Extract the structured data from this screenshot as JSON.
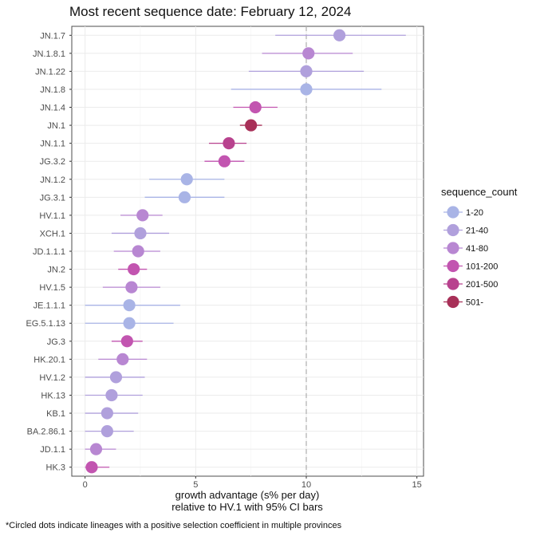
{
  "chart_data": {
    "type": "scatter",
    "subtype": "dot-with-confidence-interval",
    "title": "Most recent sequence date: February 12, 2024",
    "xlabel_line1": "growth advantage (s% per day)",
    "xlabel_line2": "relative to  HV.1  with 95% CI bars",
    "xlim": [
      -0.6,
      15.3
    ],
    "xticks": [
      0,
      5,
      10,
      15
    ],
    "reference_line_x": 10,
    "legend_title": "sequence_count",
    "legend": [
      {
        "label": "1-20",
        "color": "#a9b4e6"
      },
      {
        "label": "21-40",
        "color": "#b0a0dc"
      },
      {
        "label": "41-80",
        "color": "#b887d2"
      },
      {
        "label": "101-200",
        "color": "#c255b0"
      },
      {
        "label": "201-500",
        "color": "#b8428e"
      },
      {
        "label": "501-",
        "color": "#a83058"
      }
    ],
    "caption": "*Circled dots indicate lineages with a positive selection coefficient in multiple provinces",
    "lineages": [
      {
        "name": "JN.1.7",
        "value": 11.5,
        "lower": 8.6,
        "upper": 14.5,
        "group": "21-40"
      },
      {
        "name": "JN.1.8.1",
        "value": 10.1,
        "lower": 8.0,
        "upper": 12.1,
        "group": "41-80"
      },
      {
        "name": "JN.1.22",
        "value": 10.0,
        "lower": 7.4,
        "upper": 12.6,
        "group": "21-40"
      },
      {
        "name": "JN.1.8",
        "value": 10.0,
        "lower": 6.6,
        "upper": 13.4,
        "group": "1-20"
      },
      {
        "name": "JN.1.4",
        "value": 7.7,
        "lower": 6.7,
        "upper": 8.7,
        "group": "101-200"
      },
      {
        "name": "JN.1",
        "value": 7.5,
        "lower": 7.0,
        "upper": 8.0,
        "group": "501-"
      },
      {
        "name": "JN.1.1",
        "value": 6.5,
        "lower": 5.6,
        "upper": 7.3,
        "group": "201-500"
      },
      {
        "name": "JG.3.2",
        "value": 6.3,
        "lower": 5.4,
        "upper": 7.2,
        "group": "101-200"
      },
      {
        "name": "JN.1.2",
        "value": 4.6,
        "lower": 2.9,
        "upper": 6.3,
        "group": "1-20"
      },
      {
        "name": "JG.3.1",
        "value": 4.5,
        "lower": 2.7,
        "upper": 6.3,
        "group": "1-20"
      },
      {
        "name": "HV.1.1",
        "value": 2.6,
        "lower": 1.6,
        "upper": 3.5,
        "group": "41-80"
      },
      {
        "name": "XCH.1",
        "value": 2.5,
        "lower": 1.2,
        "upper": 3.8,
        "group": "21-40"
      },
      {
        "name": "JD.1.1.1",
        "value": 2.4,
        "lower": 1.3,
        "upper": 3.4,
        "group": "41-80"
      },
      {
        "name": "JN.2",
        "value": 2.2,
        "lower": 1.5,
        "upper": 2.8,
        "group": "101-200"
      },
      {
        "name": "HV.1.5",
        "value": 2.1,
        "lower": 0.8,
        "upper": 3.4,
        "group": "41-80"
      },
      {
        "name": "JE.1.1.1",
        "value": 2.0,
        "lower": 0.0,
        "upper": 4.3,
        "group": "1-20"
      },
      {
        "name": "EG.5.1.13",
        "value": 2.0,
        "lower": 0.0,
        "upper": 4.0,
        "group": "1-20"
      },
      {
        "name": "JG.3",
        "value": 1.9,
        "lower": 1.2,
        "upper": 2.6,
        "group": "101-200"
      },
      {
        "name": "HK.20.1",
        "value": 1.7,
        "lower": 0.6,
        "upper": 2.8,
        "group": "41-80"
      },
      {
        "name": "HV.1.2",
        "value": 1.4,
        "lower": 0.0,
        "upper": 2.7,
        "group": "21-40"
      },
      {
        "name": "HK.13",
        "value": 1.2,
        "lower": 0.0,
        "upper": 2.6,
        "group": "21-40"
      },
      {
        "name": "KB.1",
        "value": 1.0,
        "lower": 0.0,
        "upper": 2.4,
        "group": "21-40"
      },
      {
        "name": "BA.2.86.1",
        "value": 1.0,
        "lower": 0.0,
        "upper": 2.2,
        "group": "21-40"
      },
      {
        "name": "JD.1.1",
        "value": 0.5,
        "lower": 0.0,
        "upper": 1.4,
        "group": "41-80"
      },
      {
        "name": "HK.3",
        "value": 0.3,
        "lower": 0.0,
        "upper": 1.1,
        "group": "101-200"
      }
    ]
  }
}
